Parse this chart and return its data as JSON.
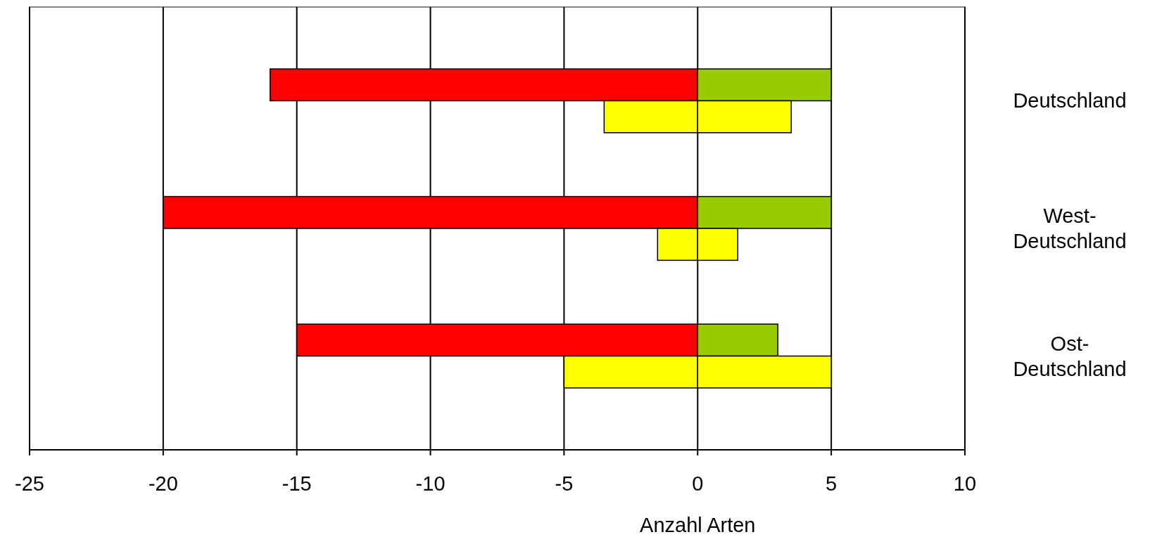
{
  "chart_data": {
    "type": "bar",
    "orientation": "horizontal",
    "xlabel": "Anzahl Arten",
    "categories": [
      "Deutschland",
      "West-Deutschland",
      "Ost-Deutschland"
    ],
    "series": [
      {
        "color": "#ff0000",
        "base": [
          0,
          0,
          0
        ],
        "values": [
          -16,
          -20,
          -15
        ]
      },
      {
        "color": "#99cc00",
        "base": [
          0,
          0,
          0
        ],
        "values": [
          5,
          5,
          3
        ]
      },
      {
        "color": "#ffff00",
        "base": [
          0,
          0,
          0
        ],
        "values": [
          -3.5,
          -1.5,
          -5
        ]
      },
      {
        "color": "#ffff00",
        "base": [
          0,
          0,
          0
        ],
        "values": [
          3.5,
          1.5,
          5
        ]
      }
    ],
    "xlim": [
      -25,
      10
    ],
    "xticks": [
      -25,
      -20,
      -15,
      -10,
      -5,
      0,
      5,
      10
    ],
    "grid": "x"
  }
}
